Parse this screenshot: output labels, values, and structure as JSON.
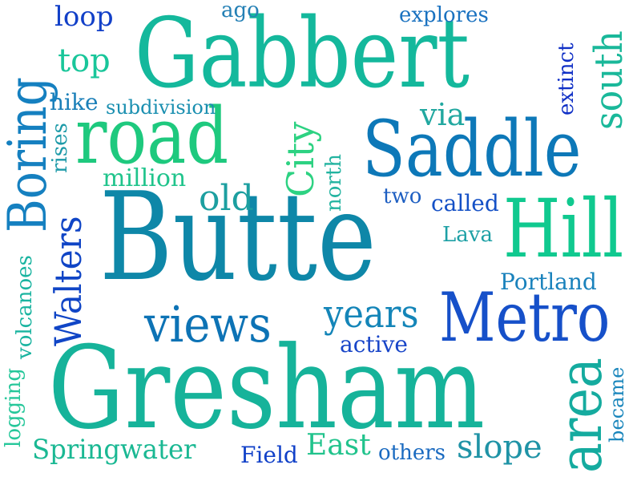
{
  "words": [
    {
      "text": "Gabbert",
      "color": "#14b89c"
    },
    {
      "text": "Butte",
      "color": "#0e87a8"
    },
    {
      "text": "Gresham",
      "color": "#16b39a"
    },
    {
      "text": "Saddle",
      "color": "#0d78b8"
    },
    {
      "text": "road",
      "color": "#1ec97e"
    },
    {
      "text": "Hill",
      "color": "#10c98f"
    },
    {
      "text": "Metro",
      "color": "#1650c9"
    },
    {
      "text": "views",
      "color": "#0d73b5"
    },
    {
      "text": "Boring",
      "color": "#1580c0"
    },
    {
      "text": "Walters",
      "color": "#1045c6"
    },
    {
      "text": "area",
      "color": "#15ab9f"
    },
    {
      "text": "years",
      "color": "#1485b8"
    },
    {
      "text": "top",
      "color": "#19c69a"
    },
    {
      "text": "old",
      "color": "#1c9fa0"
    },
    {
      "text": "City",
      "color": "#2dd282"
    },
    {
      "text": "south",
      "color": "#1ab89a"
    },
    {
      "text": "via",
      "color": "#22a8a0"
    },
    {
      "text": "Springwater",
      "color": "#1ab893"
    },
    {
      "text": "East",
      "color": "#21c38c"
    },
    {
      "text": "slope",
      "color": "#1f93a6"
    },
    {
      "text": "loop",
      "color": "#1240c8"
    },
    {
      "text": "explores",
      "color": "#1a72c0"
    },
    {
      "text": "ago",
      "color": "#2480b5"
    },
    {
      "text": "subdivision",
      "color": "#1a8fb0"
    },
    {
      "text": "hike",
      "color": "#1a7fb8"
    },
    {
      "text": "million",
      "color": "#20c48c"
    },
    {
      "text": "two",
      "color": "#1e5fc2"
    },
    {
      "text": "called",
      "color": "#1450c6"
    },
    {
      "text": "Lava",
      "color": "#1da0a5"
    },
    {
      "text": "Portland",
      "color": "#1a82bc"
    },
    {
      "text": "active",
      "color": "#1845c8"
    },
    {
      "text": "others",
      "color": "#1a6ac0"
    },
    {
      "text": "Field",
      "color": "#1040c8"
    },
    {
      "text": "rises",
      "color": "#1d9aa8"
    },
    {
      "text": "extinct",
      "color": "#1030c6"
    },
    {
      "text": "north",
      "color": "#22b3a0"
    },
    {
      "text": "volcanoes",
      "color": "#1ab4a0"
    },
    {
      "text": "logging",
      "color": "#26c79a"
    },
    {
      "text": "became",
      "color": "#1a86bc"
    }
  ]
}
